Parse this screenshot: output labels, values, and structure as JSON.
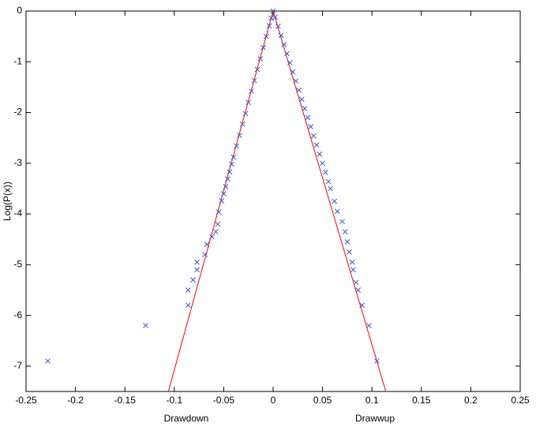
{
  "chart_data": {
    "type": "scatter",
    "ylabel": "Log(P(x))",
    "xlabel_left": "Drawdown",
    "xlabel_right": "Drawwup",
    "xlim": [
      -0.25,
      0.25
    ],
    "ylim": [
      -7.5,
      0
    ],
    "xticks": [
      -0.25,
      -0.2,
      -0.15,
      -0.1,
      -0.05,
      0,
      0.05,
      0.1,
      0.15,
      0.2,
      0.25
    ],
    "yticks": [
      0,
      -1,
      -2,
      -3,
      -4,
      -5,
      -6,
      -7
    ],
    "marker": "x",
    "series": [
      {
        "color": "#3355dd",
        "x": [
          -0.228,
          -0.129,
          -0.086,
          -0.086,
          -0.081,
          -0.077,
          -0.077,
          -0.069,
          -0.067,
          -0.062,
          -0.058,
          -0.056,
          -0.055,
          -0.052,
          -0.05,
          -0.048,
          -0.046,
          -0.044,
          -0.042,
          -0.04,
          -0.037,
          -0.034,
          -0.031,
          -0.028,
          -0.025,
          -0.022,
          -0.019,
          -0.016,
          -0.013,
          -0.01,
          -0.007,
          -0.004,
          -0.002,
          0,
          0.002,
          0.005,
          0.008,
          0.011,
          0.014,
          0.017,
          0.02,
          0.023,
          0.026,
          0.029,
          0.032,
          0.035,
          0.038,
          0.041,
          0.044,
          0.047,
          0.05,
          0.053,
          0.056,
          0.058,
          0.062,
          0.065,
          0.07,
          0.073,
          0.075,
          0.077,
          0.08,
          0.081,
          0.084,
          0.086,
          0.09,
          0.097,
          0.105
        ],
        "values": [
          -6.9,
          -6.2,
          -5.8,
          -5.5,
          -5.3,
          -5.1,
          -4.95,
          -4.8,
          -4.6,
          -4.45,
          -4.35,
          -4.2,
          -3.96,
          -3.74,
          -3.6,
          -3.46,
          -3.31,
          -3.17,
          -3.02,
          -2.88,
          -2.66,
          -2.45,
          -2.23,
          -2.02,
          -1.8,
          -1.58,
          -1.37,
          -1.15,
          -0.94,
          -0.72,
          -0.5,
          -0.29,
          -0.14,
          0,
          -0.12,
          -0.3,
          -0.48,
          -0.66,
          -0.84,
          -1.02,
          -1.2,
          -1.38,
          -1.56,
          -1.74,
          -1.92,
          -2.1,
          -2.28,
          -2.46,
          -2.64,
          -2.82,
          -3.0,
          -3.18,
          -3.36,
          -3.5,
          -3.75,
          -3.95,
          -4.15,
          -4.35,
          -4.55,
          -4.75,
          -4.95,
          -5.1,
          -5.35,
          -5.5,
          -5.8,
          -6.2,
          -6.9
        ]
      }
    ],
    "lines": [
      {
        "color": "#ff0000",
        "x": [
          -0.106,
          0
        ],
        "values": [
          -7.5,
          0
        ]
      },
      {
        "color": "#ff0000",
        "x": [
          0,
          0.114
        ],
        "values": [
          0,
          -7.5
        ]
      }
    ]
  }
}
